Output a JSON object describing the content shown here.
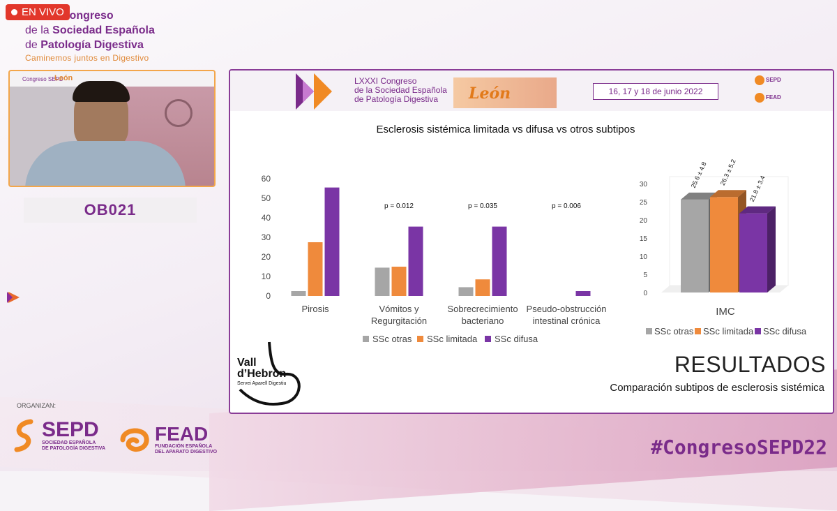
{
  "live_badge": "EN VIVO",
  "brand": {
    "line1": "Congreso",
    "line2_pre": "de la ",
    "line2_bold": "Sociedad Española",
    "line3_pre": "de ",
    "line3_bold": "Patología Digestiva",
    "tagline": "Caminemos juntos en Digestivo"
  },
  "webcam": {
    "roof_label": "Congreso SEPD",
    "roof_city": "León"
  },
  "session_code": "OB021",
  "organizers": {
    "label": "ORGANIZAN:",
    "sepd_name": "SEPD",
    "sepd_sub1": "SOCIEDAD ESPAÑOLA",
    "sepd_sub2": "DE PATOLOGÍA DIGESTIVA",
    "fead_name": "FEAD",
    "fead_sub1": "FUNDACIÓN ESPAÑOLA",
    "fead_sub2": "DEL APARATO DIGESTIVO"
  },
  "hashtag": "#CongresoSEPD22",
  "slide": {
    "header": {
      "congress_l1": "LXXXI Congreso",
      "congress_l2": "de la Sociedad Española",
      "congress_l3": "de Patología Digestiva",
      "city": "León",
      "dates": "16, 17 y 18 de junio 2022",
      "sepd": "SEPD",
      "fead": "FEAD"
    },
    "title": "Esclerosis sistémica limitada vs difusa vs otros subtipos",
    "results": "RESULTADOS",
    "subtitle": "Comparación subtipos de esclerosis sistémica",
    "institution": {
      "line1": "Vall",
      "line2": "d’Hebron",
      "line3": "Servei Aparell Digestiu"
    }
  },
  "colors": {
    "otras": "#a6a6a6",
    "limitada": "#ef8a3c",
    "difusa": "#7a35a5",
    "brand_purple": "#7a2b8a",
    "live_red": "#e2372b"
  },
  "chart_data": [
    {
      "type": "bar",
      "title": "",
      "categories": [
        [
          "Pirosis"
        ],
        [
          "Vómitos y",
          "Regurgitación"
        ],
        [
          "Sobrecrecimiento",
          "bacteriano"
        ],
        [
          "Pseudo-obstrucción",
          "intestinal crónica"
        ]
      ],
      "series": [
        {
          "name": "SSc otras",
          "values": [
            2.5,
            14.5,
            4.5,
            0
          ]
        },
        {
          "name": "SSc limitada",
          "values": [
            27.5,
            15,
            8.5,
            0
          ]
        },
        {
          "name": "SSc difusa",
          "values": [
            55.5,
            35.5,
            35.5,
            2.5
          ]
        }
      ],
      "annotations": [
        "",
        "p = 0.012",
        "p = 0.035",
        "p = 0.006"
      ],
      "ylim": [
        0,
        60
      ],
      "yticks": [
        "0",
        "10",
        "20",
        "30",
        "40",
        "50",
        "60"
      ],
      "grid": false,
      "legend": "bottom"
    },
    {
      "type": "bar",
      "title": "",
      "categories": [
        "IMC"
      ],
      "series": [
        {
          "name": "SSc otras",
          "values": [
            25.6
          ]
        },
        {
          "name": "SSc limitada",
          "values": [
            26.3
          ]
        },
        {
          "name": "SSc difusa",
          "values": [
            21.8
          ]
        }
      ],
      "data_labels": [
        "25.6 ± 4.8",
        "26.3 ± 5.2",
        "21.8 ± 3.4"
      ],
      "ylim": [
        0,
        30
      ],
      "yticks": [
        "0",
        "5",
        "10",
        "15",
        "20",
        "25",
        "30"
      ],
      "grid": false,
      "legend": "bottom",
      "style": "3d"
    }
  ]
}
